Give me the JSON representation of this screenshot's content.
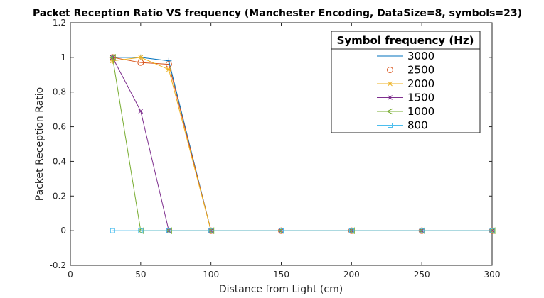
{
  "chart_data": {
    "type": "line",
    "title": "Packet Reception Ratio VS frequency (Manchester Encoding, DataSize=8, symbols=23)",
    "xlabel": "Distance from Light (cm)",
    "ylabel": "Packet Reception Ratio",
    "xlim": [
      0,
      300
    ],
    "ylim": [
      -0.2,
      1.2
    ],
    "xticks": [
      "0",
      "50",
      "100",
      "150",
      "200",
      "250",
      "300"
    ],
    "yticks": [
      "-0.2",
      "0",
      "0.2",
      "0.4",
      "0.6",
      "0.8",
      "1",
      "1.2"
    ],
    "grid": false,
    "legend": {
      "title": "Symbol frequency (Hz)",
      "position": "top-right"
    },
    "series": [
      {
        "name": "3000",
        "color": "#0072BD",
        "marker": "plus",
        "x": [
          30,
          50,
          70,
          100,
          150,
          200,
          250,
          300
        ],
        "y": [
          1.0,
          1.0,
          0.98,
          0,
          0,
          0,
          0,
          0
        ]
      },
      {
        "name": "2500",
        "color": "#D95319",
        "marker": "circle",
        "x": [
          30,
          50,
          70,
          100,
          150,
          200,
          250,
          300
        ],
        "y": [
          1.0,
          0.97,
          0.96,
          0,
          0,
          0,
          0,
          0
        ]
      },
      {
        "name": "2000",
        "color": "#EDB120",
        "marker": "asterisk",
        "x": [
          30,
          50,
          70,
          100,
          150,
          200,
          250,
          300
        ],
        "y": [
          0.98,
          1.0,
          0.93,
          0,
          0,
          0,
          0,
          0
        ]
      },
      {
        "name": "1500",
        "color": "#7E2F8E",
        "marker": "x",
        "x": [
          30,
          50,
          70,
          100,
          150,
          200,
          250,
          300
        ],
        "y": [
          1.0,
          0.69,
          0,
          0,
          0,
          0,
          0,
          0
        ]
      },
      {
        "name": "1000",
        "color": "#77AC30",
        "marker": "triangle-left",
        "x": [
          30,
          50,
          70,
          100,
          150,
          200,
          250,
          300
        ],
        "y": [
          1.0,
          0,
          0,
          0,
          0,
          0,
          0,
          0
        ]
      },
      {
        "name": "800",
        "color": "#4DBEEE",
        "marker": "square",
        "x": [
          30,
          50,
          70,
          100,
          150,
          200,
          250,
          300
        ],
        "y": [
          0,
          0,
          0,
          0,
          0,
          0,
          0,
          0
        ]
      }
    ]
  }
}
